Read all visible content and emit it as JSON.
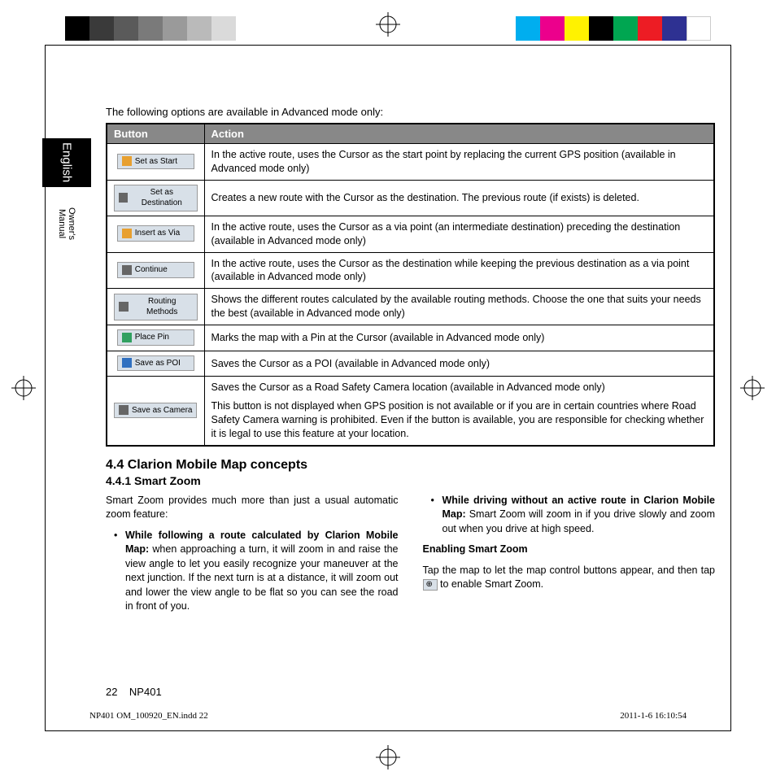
{
  "registration": {
    "left_colors": [
      "#000000",
      "#3a3a3a",
      "#5a5a5a",
      "#7a7a7a",
      "#9a9a9a",
      "#bababa",
      "#dadada"
    ],
    "right_colors": [
      "#00aeef",
      "#ec008c",
      "#fff200",
      "#000000",
      "#00a651",
      "#ed1c24",
      "#2e3192",
      "#ffffff"
    ]
  },
  "sidebar": {
    "lang": "English",
    "manual": "Owner's\nManual"
  },
  "intro": "The following options are available in Advanced mode only:",
  "table": {
    "headers": [
      "Button",
      "Action"
    ],
    "rows": [
      {
        "btn": "Set as Start",
        "icon_color": "#e8a030",
        "action": "In the active route, uses the Cursor as the start point by replacing the current GPS position (available in Advanced mode only)"
      },
      {
        "btn": "Set as Destination",
        "icon_color": "#666666",
        "action": "Creates a new route with the Cursor as the destination. The previous route (if exists) is deleted."
      },
      {
        "btn": "Insert as Via",
        "icon_color": "#e8a030",
        "action": "In the active route, uses the Cursor as a via point (an intermediate destination) preceding the destination (available in Advanced mode only)"
      },
      {
        "btn": "Continue",
        "icon_color": "#666666",
        "action": "In the active route, uses the Cursor as the destination while keeping the previous destination as a via point (available in Advanced mode only)"
      },
      {
        "btn": "Routing Methods",
        "icon_color": "#666666",
        "action": "Shows the different routes calculated by the available routing methods. Choose the one that suits your needs the best (available in Advanced mode only)"
      },
      {
        "btn": "Place Pin",
        "icon_color": "#30a060",
        "action": "Marks the map with a Pin at the Cursor (available in Advanced mode only)"
      },
      {
        "btn": "Save as POI",
        "icon_color": "#3070c0",
        "action": "Saves the Cursor as a POI (available in Advanced mode only)"
      },
      {
        "btn": "Save as Camera",
        "icon_color": "#666666",
        "action_html": true,
        "action": "<p style='margin-bottom:6px'>Saves the Cursor as a Road Safety Camera location (available in Advanced mode only)</p><p>This button is not displayed when GPS position is not available or if you are in certain countries where Road Safety Camera warning is prohibited. Even if the button is available, you are responsible for checking whether it is legal to use this feature at your location.</p>"
      }
    ]
  },
  "section": {
    "title": "4.4 Clarion Mobile Map concepts",
    "sub": "4.4.1 Smart Zoom",
    "left": {
      "p1": "Smart Zoom provides much more than just a usual automatic zoom feature:",
      "b1_bold": "While following a route calculated by Clarion Mobile Map:",
      "b1_rest": " when approaching a turn, it will zoom in and raise the view angle to let you easily recognize your maneuver at the next junction. If the next turn is at a distance, it will zoom out and lower the view angle to be flat so you can see the road in front of you."
    },
    "right": {
      "b1_bold": "While driving without an active route in Clarion Mobile Map:",
      "b1_rest": " Smart Zoom will zoom in if you drive slowly and zoom out when you drive at high speed.",
      "h": "Enabling Smart Zoom",
      "p2a": "Tap the map to let the map control buttons appear, and then tap ",
      "p2b": " to enable Smart Zoom."
    }
  },
  "footer": {
    "page": "22",
    "model": "NP401"
  },
  "indd": {
    "file": "NP401 OM_100920_EN.indd   22",
    "ts": "2011-1-6   16:10:54"
  }
}
